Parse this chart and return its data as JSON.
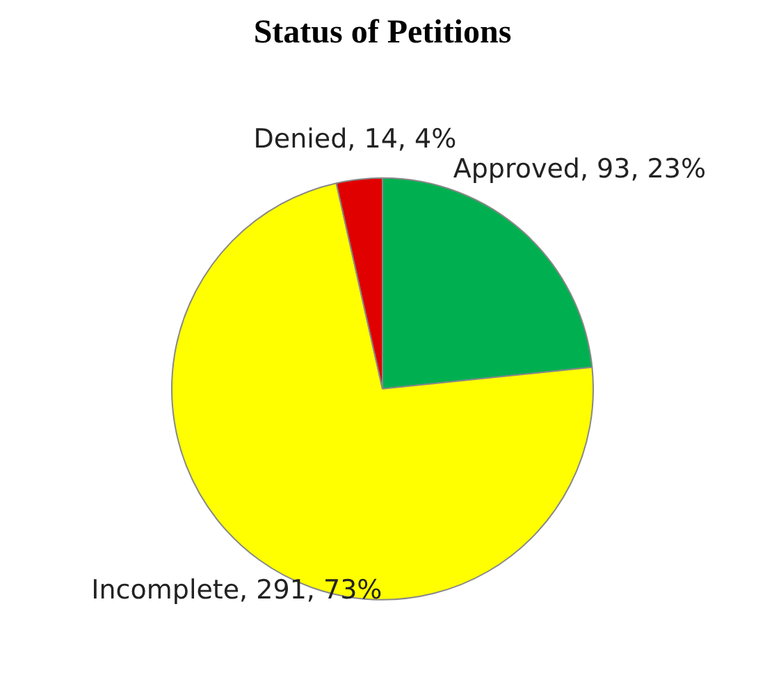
{
  "chart_data": {
    "type": "pie",
    "title": "Status of Petitions",
    "categories": [
      "Approved",
      "Incomplete",
      "Denied"
    ],
    "values": [
      93,
      291,
      14
    ],
    "colors": [
      "#00b050",
      "#ffff00",
      "#e00000"
    ],
    "value_labels": [
      "93, 23%",
      "291, 73%",
      "14, 4%"
    ],
    "legend": false
  }
}
